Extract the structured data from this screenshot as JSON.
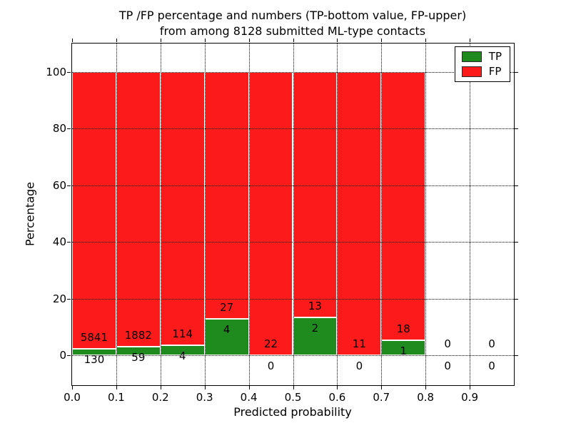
{
  "chart_data": {
    "type": "bar",
    "stacked": true,
    "normalized_to_percent": true,
    "title_lines": [
      "TP /FP percentage and numbers (TP-bottom value, FP-upper)",
      "from among 8128 submitted ML-type contacts"
    ],
    "xlabel": "Predicted probability",
    "ylabel": "Percentage",
    "total_contacts": 8128,
    "bin_width": 0.1,
    "x_bins": [
      0.0,
      0.1,
      0.2,
      0.3,
      0.4,
      0.5,
      0.6,
      0.7,
      0.8,
      0.9
    ],
    "xtick_labels": [
      "0.0",
      "0.1",
      "0.2",
      "0.3",
      "0.4",
      "0.5",
      "0.6",
      "0.7",
      "0.8",
      "0.9"
    ],
    "yticks": [
      0,
      20,
      40,
      60,
      80,
      100
    ],
    "ytick_labels": [
      "0",
      "20",
      "40",
      "60",
      "80",
      "100"
    ],
    "xlim": [
      0.0,
      1.0
    ],
    "ylim": [
      -10.6,
      110.1
    ],
    "grid": {
      "style": "dotted",
      "color": "#000000",
      "over_bars": true
    },
    "bar_edge_color": "#ffffff",
    "series": [
      {
        "name": "TP",
        "color": "#1f8b1f",
        "counts": [
          130,
          59,
          4,
          4,
          0,
          2,
          0,
          1,
          0,
          0
        ]
      },
      {
        "name": "FP",
        "color": "#fd1a1a",
        "counts": [
          5841,
          1882,
          114,
          27,
          22,
          13,
          11,
          18,
          0,
          0
        ]
      }
    ],
    "annotations": {
      "fp_upper_labels": [
        "5841",
        "1882",
        "114",
        "27",
        "22",
        "13",
        "11",
        "18",
        "0",
        "0"
      ],
      "tp_lower_labels": [
        "130",
        "59",
        "4",
        "4",
        "0",
        "2",
        "0",
        "1",
        "0",
        "0"
      ]
    },
    "legend": {
      "position": "upper right",
      "entries": [
        {
          "label": "TP",
          "color": "#1f8b1f"
        },
        {
          "label": "FP",
          "color": "#fd1a1a"
        }
      ]
    }
  }
}
